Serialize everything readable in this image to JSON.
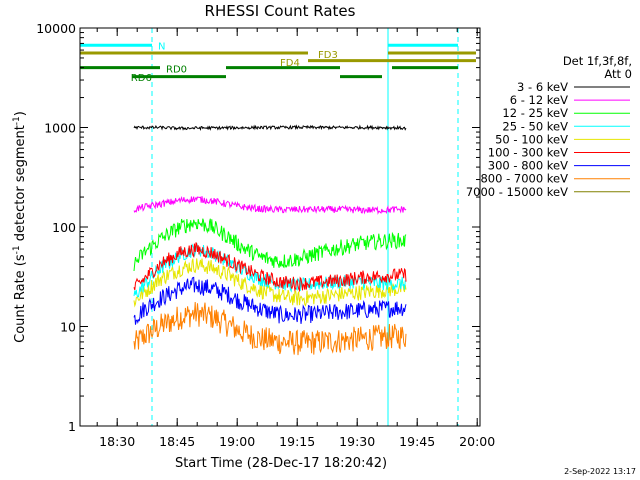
{
  "chart_data": {
    "type": "line",
    "title": "RHESSI Count Rates",
    "xlabel": "Start Time (28-Dec-17 18:20:42)",
    "ylabel": "Count Rate (s",
    "ylabel_sup1": "-1",
    "ylabel_mid": " detector segment",
    "ylabel_sup2": "-1",
    "ylabel_end": ")",
    "yscale": "log",
    "ylim": [
      1,
      10000
    ],
    "xlim_minutes": [
      0,
      100
    ],
    "x_tick_labels": [
      "18:30",
      "18:45",
      "19:00",
      "19:15",
      "19:30",
      "19:45",
      "20:00"
    ],
    "x_tick_minutes": [
      9.3,
      24.3,
      39.3,
      54.3,
      69.3,
      84.3,
      99.3
    ],
    "y_tick_labels": [
      "1",
      "10",
      "100",
      "1000",
      "10000"
    ],
    "y_tick_values": [
      1,
      10,
      100,
      1000,
      10000
    ],
    "legend_header": [
      "Det 1f,3f,8f,",
      "Att 0"
    ],
    "legend_position": "right",
    "series": [
      {
        "name": "3 - 6 keV",
        "color": "#000000",
        "x": [
          13.5,
          20,
          25,
          30,
          35,
          40,
          45,
          50,
          55,
          60,
          65,
          70,
          75,
          80,
          81.5
        ],
        "values": [
          1000,
          1000,
          980,
          990,
          990,
          995,
          1000,
          1000,
          1005,
          1000,
          1000,
          1000,
          1000,
          990,
          980
        ]
      },
      {
        "name": "6 - 12 keV",
        "color": "#ff00ff",
        "x": [
          13.5,
          16,
          20,
          25,
          29,
          33,
          37,
          40,
          45,
          50,
          55,
          60,
          65,
          70,
          75,
          80,
          81.5
        ],
        "values": [
          150,
          158,
          170,
          185,
          192,
          183,
          170,
          160,
          152,
          149,
          150,
          150,
          150,
          148,
          148,
          150,
          152
        ]
      },
      {
        "name": "12 - 25 keV",
        "color": "#00ff00",
        "x": [
          13.5,
          16,
          20,
          25,
          29,
          33,
          37,
          40,
          45,
          50,
          55,
          60,
          65,
          70,
          75,
          80,
          81.5
        ],
        "values": [
          42,
          55,
          75,
          100,
          112,
          100,
          80,
          65,
          50,
          45,
          48,
          55,
          62,
          68,
          72,
          73,
          72
        ]
      },
      {
        "name": "25 - 50 keV",
        "color": "#00ffff",
        "x": [
          13.5,
          16,
          20,
          25,
          29,
          33,
          37,
          40,
          45,
          50,
          55,
          60,
          65,
          70,
          75,
          80,
          81.5
        ],
        "values": [
          20,
          26,
          38,
          52,
          60,
          55,
          45,
          38,
          30,
          27,
          26,
          27,
          28,
          28,
          27,
          27,
          27
        ]
      },
      {
        "name": "50 - 100 keV",
        "color": "#e6e600",
        "x": [
          13.5,
          16,
          20,
          25,
          29,
          33,
          37,
          40,
          45,
          50,
          55,
          60,
          65,
          70,
          75,
          80,
          81.5
        ],
        "values": [
          18,
          22,
          30,
          38,
          42,
          39,
          33,
          28,
          23,
          20,
          19,
          20,
          21,
          22,
          23,
          24,
          24
        ]
      },
      {
        "name": "100 - 300 keV",
        "color": "#ff0000",
        "x": [
          13.5,
          16,
          20,
          25,
          29,
          33,
          37,
          40,
          45,
          50,
          55,
          60,
          65,
          70,
          75,
          80,
          81.5
        ],
        "values": [
          24,
          30,
          42,
          55,
          60,
          55,
          46,
          40,
          32,
          28,
          27,
          28,
          29,
          31,
          32,
          33,
          33
        ]
      },
      {
        "name": "300 - 800 keV",
        "color": "#0000ff",
        "x": [
          13.5,
          16,
          20,
          25,
          29,
          33,
          37,
          40,
          45,
          50,
          55,
          60,
          65,
          70,
          75,
          80,
          81.5
        ],
        "values": [
          12,
          15,
          19,
          24,
          26,
          24,
          21,
          18,
          15,
          13,
          13,
          13.5,
          14,
          14.5,
          15,
          15.5,
          15.5
        ]
      },
      {
        "name": "800 - 7000 keV",
        "color": "#ff8000",
        "x": [
          13.5,
          16,
          20,
          25,
          29,
          33,
          37,
          40,
          45,
          50,
          55,
          60,
          65,
          70,
          75,
          80,
          81.5
        ],
        "values": [
          6.5,
          8,
          10,
          12.5,
          13.5,
          12.5,
          10.5,
          9,
          7.5,
          7,
          6.8,
          7,
          7.2,
          7.5,
          7.8,
          8,
          8
        ]
      },
      {
        "name": "7000 - 15000 keV",
        "color": "#808000",
        "x": [],
        "values": []
      }
    ],
    "attenuator_bars": [
      {
        "label": "N",
        "color": "#00ffff",
        "segments": [
          [
            0,
            18
          ],
          [
            77,
            94.5
          ]
        ],
        "level": 6700
      },
      {
        "label": "FD3",
        "color": "#999900",
        "segments": [
          [
            0,
            57
          ],
          [
            77,
            99
          ]
        ],
        "level": 5600
      },
      {
        "label": "FD4",
        "color": "#999900",
        "segments": [
          [
            57,
            99
          ]
        ],
        "level": 4700
      },
      {
        "label": "RD0",
        "color": "#008000",
        "segments": [
          [
            0,
            20
          ],
          [
            36.5,
            65
          ],
          [
            78,
            94.5
          ]
        ],
        "level": 4000
      },
      {
        "label": "RD6",
        "color": "#008000",
        "segments": [
          [
            13,
            36.5
          ],
          [
            65,
            75.5
          ]
        ],
        "level": 3250
      }
    ],
    "vlines": [
      {
        "minute": 0,
        "style": "solid",
        "color": "#00ffff"
      },
      {
        "minute": 18,
        "style": "dashed",
        "color": "#00ffff"
      },
      {
        "minute": 77,
        "style": "solid",
        "color": "#00ffff"
      },
      {
        "minute": 94.5,
        "style": "dashed",
        "color": "#00ffff"
      }
    ]
  },
  "footer": {
    "timestamp": "2-Sep-2022 13:17"
  }
}
